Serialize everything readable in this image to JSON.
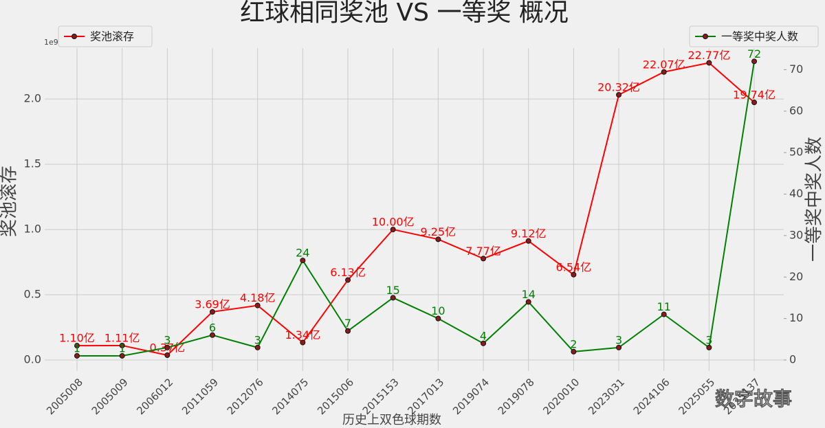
{
  "chart_data": {
    "type": "line",
    "title": "红球相同奖池 VS 一等奖 概况",
    "x_label": "历史上双色球期数",
    "y_label": "奖池滚存",
    "y2_label": "一等奖中奖人数",
    "y_offset_label": "1e9",
    "watermark": "数字故事",
    "categories": [
      "2005008",
      "2005009",
      "2006012",
      "2011059",
      "2012076",
      "2014075",
      "2015006",
      "2015153",
      "2017013",
      "2019074",
      "2019078",
      "2020010",
      "2023031",
      "2024106",
      "2025055",
      "2025137"
    ],
    "series": [
      {
        "name": "奖池滚存",
        "color": "#ff0000",
        "axis": "y",
        "legend": "upper left",
        "values": [
          0.11,
          0.111,
          0.037,
          0.369,
          0.418,
          0.134,
          0.613,
          1.0,
          0.925,
          0.777,
          0.912,
          0.654,
          2.032,
          2.207,
          2.277,
          1.974
        ],
        "value_labels": [
          "1.10亿",
          "1.11亿",
          "0.37亿",
          "3.69亿",
          "4.18亿",
          "1.34亿",
          "6.13亿",
          "10.00亿",
          "9.25亿",
          "7.77亿",
          "9.12亿",
          "6.54亿",
          "20.32亿",
          "22.07亿",
          "22.77亿",
          "19.74亿"
        ]
      },
      {
        "name": "一等奖中奖人数",
        "color": "#008000",
        "axis": "y2",
        "legend": "upper right",
        "values": [
          1,
          1,
          3,
          6,
          3,
          24,
          7,
          15,
          10,
          4,
          14,
          2,
          3,
          11,
          3,
          72
        ]
      }
    ],
    "ylim": [
      -0.084,
      2.39
    ],
    "yticks": [
      0.0,
      0.5,
      1.0,
      1.5,
      2.0
    ],
    "y2lim": [
      -2.65,
      75.2
    ],
    "y2ticks": [
      0,
      10,
      20,
      30,
      40,
      50,
      60,
      70
    ],
    "grid": true
  }
}
